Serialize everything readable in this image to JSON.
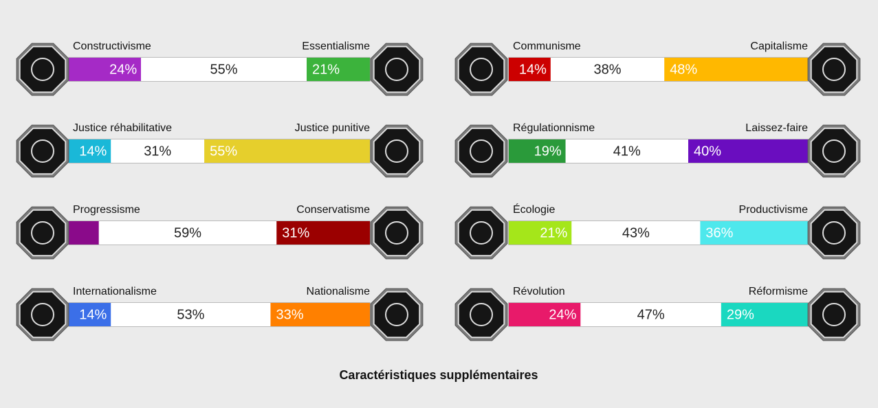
{
  "axes": [
    {
      "left": {
        "name": "Constructivisme",
        "value": 24,
        "label": "24%",
        "color": "#a52ac6"
      },
      "middle": {
        "value": 55,
        "label": "55%"
      },
      "right": {
        "name": "Essentialisme",
        "value": 21,
        "label": "21%",
        "color": "#3cb33c"
      }
    },
    {
      "left": {
        "name": "Communisme",
        "value": 14,
        "label": "14%",
        "color": "#cc0000"
      },
      "middle": {
        "value": 38,
        "label": "38%"
      },
      "right": {
        "name": "Capitalisme",
        "value": 48,
        "label": "48%",
        "color": "#ffb800"
      }
    },
    {
      "left": {
        "name": "Justice réhabilitative",
        "value": 14,
        "label": "14%",
        "color": "#1ab8d8"
      },
      "middle": {
        "value": 31,
        "label": "31%"
      },
      "right": {
        "name": "Justice punitive",
        "value": 55,
        "label": "55%",
        "color": "#e6cf2c"
      }
    },
    {
      "left": {
        "name": "Régulationnisme",
        "value": 19,
        "label": "19%",
        "color": "#2a9a3a"
      },
      "middle": {
        "value": 41,
        "label": "41%"
      },
      "right": {
        "name": "Laissez-faire",
        "value": 40,
        "label": "40%",
        "color": "#6a0dbf"
      }
    },
    {
      "left": {
        "name": "Progressisme",
        "value": 10,
        "label": null,
        "color": "#8a0a8a"
      },
      "middle": {
        "value": 59,
        "label": "59%"
      },
      "right": {
        "name": "Conservatisme",
        "value": 31,
        "label": "31%",
        "color": "#9b0000"
      }
    },
    {
      "left": {
        "name": "Écologie",
        "value": 21,
        "label": "21%",
        "color": "#a5e61a"
      },
      "middle": {
        "value": 43,
        "label": "43%"
      },
      "right": {
        "name": "Productivisme",
        "value": 36,
        "label": "36%",
        "color": "#4ee8ec"
      }
    },
    {
      "left": {
        "name": "Internationalisme",
        "value": 14,
        "label": "14%",
        "color": "#3b6fe8"
      },
      "middle": {
        "value": 53,
        "label": "53%"
      },
      "right": {
        "name": "Nationalisme",
        "value": 33,
        "label": "33%",
        "color": "#ff8000"
      }
    },
    {
      "left": {
        "name": "Révolution",
        "value": 24,
        "label": "24%",
        "color": "#e81a6a"
      },
      "middle": {
        "value": 47,
        "label": "47%"
      },
      "right": {
        "name": "Réformisme",
        "value": 29,
        "label": "29%",
        "color": "#1ad8c0"
      }
    }
  ],
  "footer": "Caractéristiques supplémentaires"
}
